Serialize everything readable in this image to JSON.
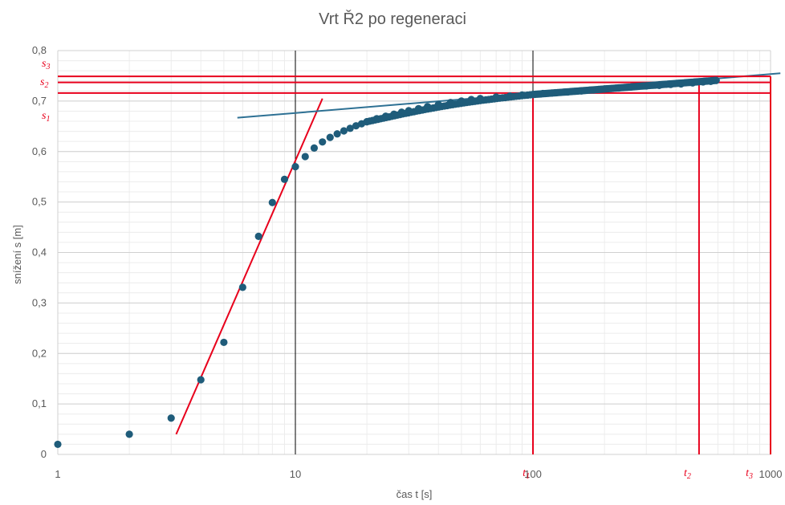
{
  "chart_data": {
    "type": "scatter",
    "title": "Vrt Ř2 po regeneraci",
    "xlabel": "čas t [s]",
    "ylabel": "snížení s [m]",
    "xscale": "log",
    "xlim": [
      1,
      1000
    ],
    "ylim": [
      0,
      0.8
    ],
    "grid": true,
    "x_tick_labels": [
      "1",
      "10",
      "100",
      "1000"
    ],
    "y_tick_labels": [
      "0",
      "0,1",
      "0,2",
      "0,3",
      "0,4",
      "0,5",
      "0,6",
      "0,7",
      "0,8"
    ],
    "y_ticks": [
      0,
      0.1,
      0.2,
      0.3,
      0.4,
      0.5,
      0.6,
      0.7,
      0.8
    ],
    "x_ticks": [
      1,
      10,
      100,
      1000
    ],
    "colors": {
      "points": "#1f5c7a",
      "late_fit": "#2e7194",
      "early_fit": "#e8001c",
      "markers": "#e8001c",
      "text": "#595959"
    },
    "series": [
      {
        "x": [
          1,
          2,
          3,
          4,
          5,
          6,
          7,
          8,
          9,
          10,
          11,
          12,
          13,
          14,
          15,
          16,
          17,
          18,
          19,
          20,
          22,
          24,
          26,
          28,
          30,
          33,
          36,
          40,
          45,
          50,
          55,
          60,
          70,
          80,
          90,
          100,
          110,
          120,
          140,
          160,
          180,
          200,
          230,
          260,
          300,
          340,
          380,
          420,
          470,
          520,
          560,
          590
        ],
        "y": [
          0.02,
          0.04,
          0.072,
          0.148,
          0.222,
          0.331,
          0.432,
          0.499,
          0.545,
          0.57,
          0.59,
          0.607,
          0.619,
          0.628,
          0.635,
          0.641,
          0.646,
          0.651,
          0.655,
          0.659,
          0.665,
          0.67,
          0.674,
          0.678,
          0.681,
          0.685,
          0.689,
          0.693,
          0.697,
          0.7,
          0.703,
          0.705,
          0.708,
          0.71,
          0.712,
          0.713,
          0.715,
          0.716,
          0.718,
          0.72,
          0.722,
          0.724,
          0.726,
          0.728,
          0.73,
          0.731,
          0.733,
          0.734,
          0.736,
          0.738,
          0.739,
          0.741
        ]
      }
    ],
    "early_fit_line": {
      "x": [
        3.15,
        13
      ],
      "y": [
        0.04,
        0.705
      ]
    },
    "late_fit_line": {
      "x": [
        5.7,
        1100
      ],
      "y": [
        0.667,
        0.755
      ]
    },
    "time_markers": [
      {
        "label": "t",
        "sub": "1",
        "x": 100
      },
      {
        "label": "t",
        "sub": "2",
        "x": 500
      },
      {
        "label": "t",
        "sub": "3",
        "x": 1000
      }
    ],
    "level_markers": [
      {
        "label": "s",
        "sub": "1",
        "y": 0.716
      },
      {
        "label": "s",
        "sub": "2",
        "y": 0.737
      },
      {
        "label": "s",
        "sub": "3",
        "y": 0.749
      }
    ]
  }
}
